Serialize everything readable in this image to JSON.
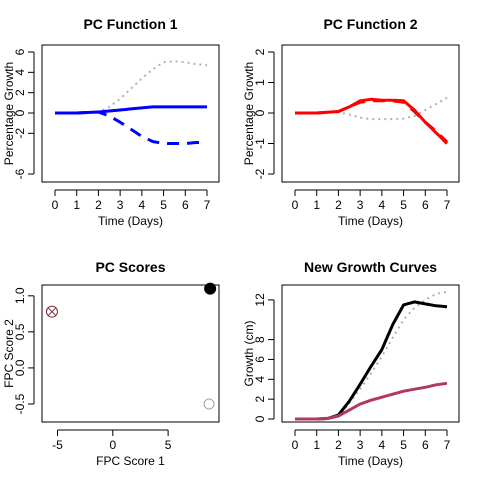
{
  "chart_data": [
    {
      "type": "line",
      "title": "PC Function 1",
      "xlabel": "Time (Days)",
      "ylabel": "Percentage Growth",
      "xlim": [
        0,
        7
      ],
      "ylim": [
        -6,
        6
      ],
      "xticks": [
        "0",
        "1",
        "2",
        "3",
        "4",
        "5",
        "6",
        "7"
      ],
      "yticks": [
        "-6",
        "-2",
        "0",
        "2",
        "4",
        "6"
      ],
      "grid": false,
      "series": [
        {
          "style": "dotted",
          "color": "#b0b0b0",
          "width": 2,
          "x": [
            0,
            1,
            2,
            2.5,
            3,
            3.5,
            4,
            4.5,
            5,
            5.5,
            6,
            6.5,
            7
          ],
          "y": [
            0,
            0,
            0.1,
            0.6,
            1.4,
            2.4,
            3.4,
            4.3,
            5.0,
            5.1,
            5.0,
            4.8,
            4.7
          ]
        },
        {
          "style": "solid",
          "color": "#0000ff",
          "width": 3,
          "x": [
            0,
            1,
            2,
            2.5,
            3,
            3.5,
            4,
            4.5,
            5,
            5.5,
            6,
            6.5,
            7
          ],
          "y": [
            0,
            0,
            0.1,
            0.2,
            0.3,
            0.4,
            0.5,
            0.6,
            0.6,
            0.6,
            0.6,
            0.6,
            0.6
          ]
        },
        {
          "style": "dashed",
          "color": "#0000ff",
          "width": 3,
          "x": [
            0,
            1,
            2,
            2.5,
            3,
            3.5,
            4,
            4.5,
            5,
            5.5,
            6,
            6.5,
            7
          ],
          "y": [
            0,
            0,
            0.1,
            -0.3,
            -0.9,
            -1.6,
            -2.3,
            -2.8,
            -3.0,
            -3.0,
            -3.0,
            -2.9,
            -2.9
          ]
        }
      ]
    },
    {
      "type": "line",
      "title": "PC Function 2",
      "xlabel": "Time (Days)",
      "ylabel": "Percentage Growth",
      "xlim": [
        0,
        7
      ],
      "ylim": [
        -2,
        2
      ],
      "xticks": [
        "0",
        "1",
        "2",
        "3",
        "4",
        "5",
        "6",
        "7"
      ],
      "yticks": [
        "-2",
        "-1",
        "0",
        "1",
        "2"
      ],
      "grid": false,
      "series": [
        {
          "style": "dotted",
          "color": "#b0b0b0",
          "width": 2,
          "x": [
            0,
            1,
            2,
            2.5,
            3,
            3.5,
            4,
            4.5,
            5,
            5.5,
            6,
            6.5,
            7
          ],
          "y": [
            0,
            0,
            0.02,
            -0.05,
            -0.15,
            -0.2,
            -0.2,
            -0.2,
            -0.18,
            -0.1,
            0.1,
            0.3,
            0.5
          ]
        },
        {
          "style": "solid",
          "color": "#ff0000",
          "width": 3,
          "x": [
            0,
            1,
            2,
            2.5,
            3,
            3.5,
            4,
            4.5,
            5,
            5.5,
            6,
            6.5,
            7
          ],
          "y": [
            0,
            0,
            0.05,
            0.2,
            0.4,
            0.45,
            0.42,
            0.42,
            0.4,
            0.1,
            -0.3,
            -0.65,
            -1.0
          ]
        },
        {
          "style": "dashed",
          "color": "#ff0000",
          "width": 3,
          "x": [
            0,
            1,
            2,
            2.5,
            3,
            3.5,
            4,
            4.5,
            5,
            5.5,
            6,
            6.5,
            7
          ],
          "y": [
            0,
            0,
            0.05,
            0.2,
            0.35,
            0.4,
            0.4,
            0.4,
            0.35,
            0.05,
            -0.3,
            -0.6,
            -0.95
          ]
        }
      ]
    },
    {
      "type": "scatter",
      "title": "PC Scores",
      "xlabel": "FPC Score 1",
      "ylabel": "FPC Score 2",
      "xlim": [
        -6.4,
        9.6
      ],
      "ylim": [
        -0.75,
        1.15
      ],
      "xticks": [
        "-5",
        "0",
        "5"
      ],
      "yticks": [
        "-0.5",
        "0.0",
        "0.5",
        "1.0"
      ],
      "grid": false,
      "points": [
        {
          "x": -5.5,
          "y": 0.78,
          "shape": "circle-x",
          "color": "#7a2b3a"
        },
        {
          "x": 8.8,
          "y": 1.1,
          "shape": "filled-circle",
          "color": "#000000"
        },
        {
          "x": 8.7,
          "y": -0.5,
          "shape": "open-circle",
          "color": "#a0a0a0"
        }
      ]
    },
    {
      "type": "line",
      "title": "New Growth Curves",
      "xlabel": "Time (Days)",
      "ylabel": "Growth (cm)",
      "xlim": [
        0,
        7
      ],
      "ylim": [
        -0.3,
        13.5
      ],
      "xticks": [
        "0",
        "1",
        "2",
        "3",
        "4",
        "5",
        "6",
        "7"
      ],
      "yticks": [
        "0",
        "2",
        "4",
        "6",
        "8",
        "12"
      ],
      "grid": false,
      "series": [
        {
          "style": "dotted",
          "color": "#b0b0b0",
          "width": 2,
          "x": [
            0,
            1,
            2,
            2.5,
            3,
            3.5,
            4,
            4.5,
            5,
            5.5,
            6,
            6.5,
            7
          ],
          "y": [
            0,
            0,
            0.3,
            1.6,
            3.0,
            4.6,
            6.3,
            8.2,
            10.0,
            11.2,
            12.0,
            12.6,
            12.8
          ]
        },
        {
          "style": "solid",
          "color": "#000000",
          "width": 3,
          "x": [
            0,
            1,
            1.5,
            2,
            2.5,
            3,
            3.5,
            4,
            4.5,
            5,
            5.5,
            6,
            6.5,
            7
          ],
          "y": [
            0,
            0,
            0.05,
            0.4,
            1.8,
            3.5,
            5.3,
            7.0,
            9.5,
            11.5,
            11.8,
            11.6,
            11.4,
            11.3
          ]
        },
        {
          "style": "solid",
          "color": "#b03a5a",
          "width": 3,
          "x": [
            0,
            1,
            1.5,
            2,
            2.5,
            3,
            3.5,
            4,
            4.5,
            5,
            5.5,
            6,
            6.5,
            7
          ],
          "y": [
            0,
            0,
            0.05,
            0.3,
            0.9,
            1.5,
            1.9,
            2.2,
            2.5,
            2.8,
            3.0,
            3.2,
            3.45,
            3.6
          ]
        }
      ]
    }
  ]
}
